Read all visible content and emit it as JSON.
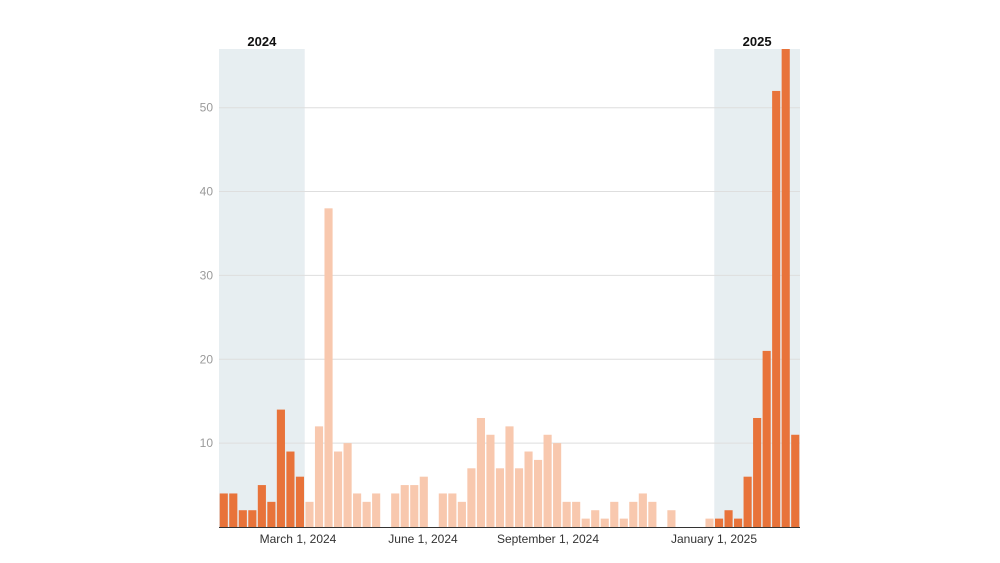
{
  "chart_data": {
    "type": "bar",
    "title": "",
    "xlabel": "",
    "ylabel": "",
    "ylim": [
      0,
      57
    ],
    "yticks": [
      10,
      20,
      30,
      40,
      50
    ],
    "grid": true,
    "x_tick_labels": [
      "March 1, 2024",
      "June 1, 2024",
      "September 1, 2024",
      "January 1, 2025"
    ],
    "highlight_bands": [
      {
        "label": "2024"
      },
      {
        "label": "2025"
      }
    ],
    "colors": {
      "highlight_bar": "#e8733a",
      "normal_bar": "#f8c8ae",
      "band_fill": "#e7eef1",
      "grid": "#dedede"
    },
    "series": [
      {
        "values": [
          4,
          4,
          2,
          2,
          5,
          3,
          14,
          9,
          6,
          3,
          12,
          38,
          9,
          10,
          4,
          3,
          4,
          0,
          4,
          5,
          5,
          6,
          0,
          4,
          4,
          3,
          7,
          13,
          11,
          7,
          12,
          7,
          9,
          8,
          11,
          10,
          3,
          3,
          1,
          2,
          1,
          3,
          1,
          3,
          4,
          3,
          0,
          2,
          0,
          0,
          0,
          1,
          1,
          2,
          1,
          6,
          13,
          21,
          52,
          57,
          11
        ],
        "highlighted": [
          true,
          true,
          true,
          true,
          true,
          true,
          true,
          true,
          true,
          false,
          false,
          false,
          false,
          false,
          false,
          false,
          false,
          false,
          false,
          false,
          false,
          false,
          false,
          false,
          false,
          false,
          false,
          false,
          false,
          false,
          false,
          false,
          false,
          false,
          false,
          false,
          false,
          false,
          false,
          false,
          false,
          false,
          false,
          false,
          false,
          false,
          false,
          false,
          false,
          false,
          false,
          false,
          true,
          true,
          true,
          true,
          true,
          true,
          true,
          true,
          true
        ]
      }
    ]
  }
}
